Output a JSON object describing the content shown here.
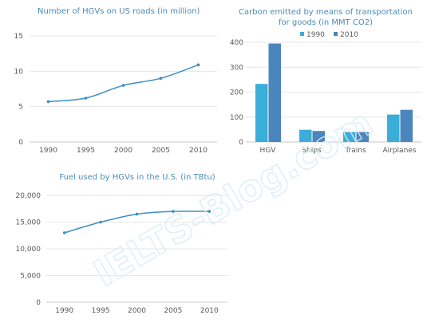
{
  "watermark": "IELTS-Blog.com",
  "chart_data": [
    {
      "type": "line",
      "title": "Number of HGVs on US roads (in million)",
      "x": [
        "1990",
        "1995",
        "2000",
        "2005",
        "2010"
      ],
      "series": [
        {
          "values": [
            5.7,
            6.2,
            8.0,
            9.0,
            10.9
          ]
        }
      ],
      "ylim": [
        0,
        15
      ],
      "yticks": [
        0,
        5,
        10,
        15
      ],
      "ytick_labels": [
        "0",
        "5",
        "10",
        "15"
      ],
      "line_color": "#3a8fc4",
      "grid": true
    },
    {
      "type": "bar",
      "title": "Carbon emitted by means of transportation",
      "subtitle": "for goods (in MMT CO2)",
      "categories": [
        "HGV",
        "Ships",
        "Trains",
        "Airplanes"
      ],
      "series": [
        {
          "name": "1990",
          "color": "#3aaed8",
          "values": [
            233,
            49,
            40,
            110
          ]
        },
        {
          "name": "2010",
          "color": "#4a86bd",
          "values": [
            395,
            44,
            40,
            129
          ]
        }
      ],
      "ylim": [
        0,
        400
      ],
      "yticks": [
        0,
        100,
        200,
        300,
        400
      ],
      "ytick_labels": [
        "0",
        "100",
        "200",
        "300",
        "400"
      ],
      "legend": "top",
      "grid": true
    },
    {
      "type": "line",
      "title": "Fuel used by HGVs in the U.S. (in TBtu)",
      "x": [
        "1990",
        "1995",
        "2000",
        "2005",
        "2010"
      ],
      "series": [
        {
          "values": [
            13000,
            15000,
            16500,
            17000,
            17000
          ]
        }
      ],
      "ylim": [
        0,
        20000
      ],
      "yticks": [
        0,
        5000,
        10000,
        15000,
        20000
      ],
      "ytick_labels": [
        "0",
        "5,000",
        "10,000",
        "15,000",
        "20,000"
      ],
      "line_color": "#3a8fc4",
      "grid": true
    }
  ]
}
